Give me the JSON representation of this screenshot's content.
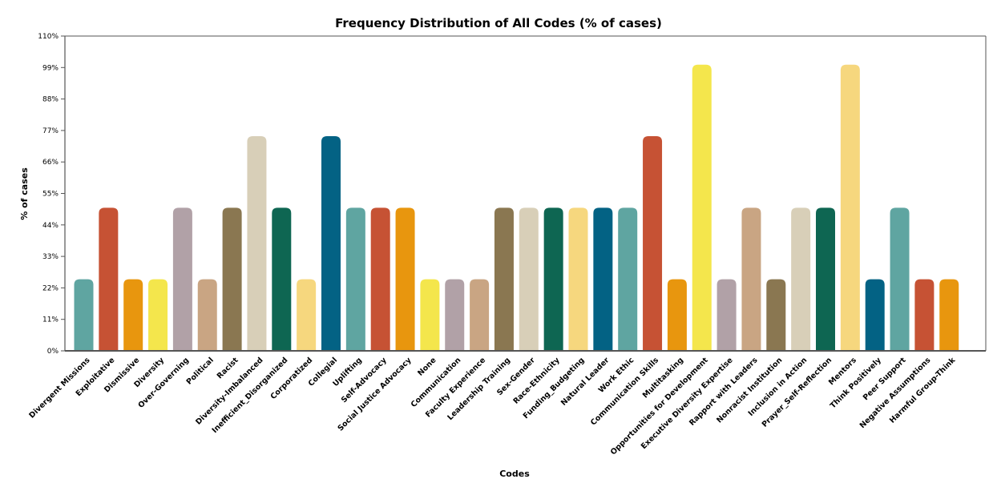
{
  "chart_data": {
    "type": "bar",
    "title": "Frequency Distribution of All Codes (% of cases)",
    "xlabel": "Codes",
    "ylabel": "% of cases",
    "ylim": [
      0,
      110
    ],
    "yticks": [
      0,
      11,
      22,
      33,
      44,
      55,
      66,
      77,
      88,
      99,
      110
    ],
    "ytick_labels": [
      "0%",
      "11%",
      "22%",
      "33%",
      "44%",
      "55%",
      "66%",
      "77%",
      "88%",
      "99%",
      "110%"
    ],
    "grid": false,
    "legend": "none",
    "categories": [
      "Divergent Missions",
      "Exploitative",
      "Dismissive",
      "Diversity",
      "Over-Governing",
      "Political",
      "Racist",
      "Diversity-Imbalanced",
      "Inefficient_Disorganized",
      "Corporatized",
      "Collegial",
      "Uplifting",
      "Self-Advocacy",
      "Social Justice Advocacy",
      "None",
      "Communication",
      "Faculty Experience",
      "Leadership Training",
      "Sex-Gender",
      "Race-Ethnicity",
      "Funding_Budgeting",
      "Natural Leader",
      "Work Ethic",
      "Communication Skills",
      "Multitasking",
      "Opportunities for Development",
      "Executive Diversity Expertise",
      "Rapport with Leaders",
      "Nonracist Institution",
      "Inclusion in Action",
      "Prayer_Self-Reflection",
      "Mentors",
      "Think Positively",
      "Peer Support",
      "Negative Assumptions",
      "Harmful Group-Think"
    ],
    "values": [
      25,
      50,
      25,
      25,
      50,
      25,
      50,
      75,
      50,
      25,
      75,
      50,
      50,
      50,
      25,
      25,
      25,
      50,
      50,
      50,
      50,
      50,
      50,
      75,
      25,
      100,
      25,
      50,
      25,
      50,
      50,
      100,
      25,
      50,
      25,
      25
    ],
    "colors": [
      "#5fa5a1",
      "#c65234",
      "#e8960e",
      "#f4e64c",
      "#b1a1a7",
      "#c9a583",
      "#8a7751",
      "#d8cfb8",
      "#0e6652",
      "#f6d77e",
      "#036284",
      "#5fa5a1",
      "#c65234",
      "#e8960e",
      "#f4e64c",
      "#b1a1a7",
      "#c9a583",
      "#8a7751",
      "#d8cfb8",
      "#0e6652",
      "#f6d77e",
      "#036284",
      "#5fa5a1",
      "#c65234",
      "#e8960e",
      "#f4e64c",
      "#b1a1a7",
      "#c9a583",
      "#8a7751",
      "#d8cfb8",
      "#0e6652",
      "#f6d77e",
      "#036284",
      "#5fa5a1",
      "#c65234",
      "#e8960e"
    ],
    "axis_color": "#555555"
  }
}
